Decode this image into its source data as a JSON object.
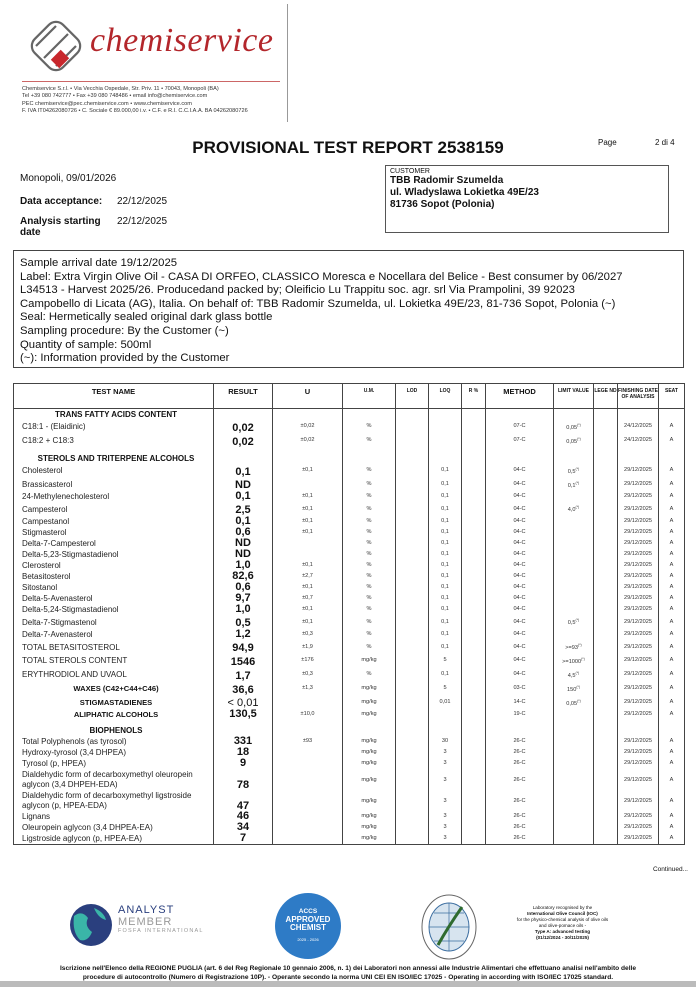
{
  "company": {
    "logo_text": "chemiservice",
    "address_lines": [
      "Chemiservice S.r.l. • Via Vecchia Ospedale, Str. Priv. 11 • 70043, Monopoli (BA)",
      "Tel +39 080 742777 • Fax +39 080 748486 • email info@chemiservice.com",
      "PEC chemiservice@pec.chemiservice.com • www.chemiservice.com",
      "F. IVA IT04262080726 • C. Sociale € 89.000,00 i.v. • C.F. e R.I. C.C.I.A.A. BA 04262080726"
    ]
  },
  "report": {
    "title": "PROVISIONAL TEST REPORT 2538159",
    "page_label": "Page",
    "page_value": "2 di 4",
    "place_date": "Monopoli, 09/01/2026",
    "acceptance_label": "Data acceptance:",
    "acceptance_value": "22/12/2025",
    "analysis_label": "Analysis starting date",
    "analysis_value": "22/12/2025"
  },
  "customer": {
    "label": "CUSTOMER",
    "lines": [
      "TBB Radomir Szumelda",
      "ul. Wladyslawa Lokietka 49E/23",
      "81736  Sopot (Polonia)"
    ]
  },
  "sample_lines": [
    "Sample arrival date 19/12/2025",
    "Label: Extra Virgin Olive Oil - CASA DI ORFEO, CLASSICO Moresca e Nocellara del Belice - Best consumer by 06/2027",
    "L34513 - Harvest 2025/26. Producedand packed by; Oleificio Lu Trappitu soc. agr. srl Via Prampolini, 39 92023",
    "Campobello di Licata (AG), Italia. On behalf of: TBB Radomir Szumelda, ul. Lokietka 49E/23, 81-736 Sopot, Polonia  (~)",
    "Seal: Hermetically sealed original dark glass bottle",
    "Sampling procedure: By the Customer (~)",
    "Quantity of sample: 500ml",
    "(~): Information provided by the Customer"
  ],
  "table": {
    "headers": [
      "TEST NAME",
      "RESULT",
      "U",
      "U.M.",
      "LOD",
      "LOQ",
      "R %",
      "METHOD",
      "LIMIT VALUE",
      "LEGE ND",
      "FINISHING DATE OF ANALYSIS",
      "SEAT"
    ],
    "rows": [
      {
        "type": "section",
        "name": "TRANS FATTY ACIDS CONTENT"
      },
      {
        "name": "C18:1 - (Elaidinic)",
        "result": "0,02",
        "u": "±0,02",
        "um": "%",
        "lod": "",
        "loq": "",
        "r": "",
        "method": "07-C",
        "limit": "0,05",
        "limit_note": "(*)",
        "date": "24/12/2025",
        "seat": "A"
      },
      {
        "name": "C18:2 + C18:3",
        "result": "0,02",
        "u": "±0,02",
        "um": "%",
        "lod": "",
        "loq": "",
        "r": "",
        "method": "07-C",
        "limit": "0,05",
        "limit_note": "(*)",
        "date": "24/12/2025",
        "seat": "A"
      },
      {
        "type": "space"
      },
      {
        "type": "section",
        "name": "STEROLS AND TRITERPENE ALCOHOLS"
      },
      {
        "name": "Cholesterol",
        "result": "0,1",
        "u": "±0,1",
        "um": "%",
        "loq": "0,1",
        "method": "04-C",
        "limit": "0,5",
        "limit_note": "(*)",
        "date": "29/12/2025",
        "seat": "A"
      },
      {
        "name": "Brassicasterol",
        "result": "ND",
        "u": "",
        "um": "%",
        "loq": "0,1",
        "method": "04-C",
        "limit": "0,1",
        "limit_note": "(*)",
        "date": "29/12/2025",
        "seat": "A"
      },
      {
        "name": "24-Methylenecholesterol",
        "result": "0,1",
        "u": "±0,1",
        "um": "%",
        "loq": "0,1",
        "method": "04-C",
        "limit": "",
        "date": "29/12/2025",
        "seat": "A"
      },
      {
        "name": "Campesterol",
        "result": "2,5",
        "u": "±0,1",
        "um": "%",
        "loq": "0,1",
        "method": "04-C",
        "limit": "4,0",
        "limit_note": "(*)",
        "date": "29/12/2025",
        "seat": "A"
      },
      {
        "name": "Campestanol",
        "result": "0,1",
        "u": "±0,1",
        "um": "%",
        "loq": "0,1",
        "method": "04-C",
        "limit": "",
        "date": "29/12/2025",
        "seat": "A"
      },
      {
        "name": "Stigmasterol",
        "result": "0,6",
        "u": "±0,1",
        "um": "%",
        "loq": "0,1",
        "method": "04-C",
        "limit": "",
        "date": "29/12/2025",
        "seat": "A"
      },
      {
        "name": "Delta-7-Campesterol",
        "result": "ND",
        "u": "",
        "um": "%",
        "loq": "0,1",
        "method": "04-C",
        "limit": "",
        "date": "29/12/2025",
        "seat": "A"
      },
      {
        "name": "Delta-5,23-Stigmastadienol",
        "result": "ND",
        "u": "",
        "um": "%",
        "loq": "0,1",
        "method": "04-C",
        "limit": "",
        "date": "29/12/2025",
        "seat": "A"
      },
      {
        "name": "Clerosterol",
        "result": "1,0",
        "u": "±0,1",
        "um": "%",
        "loq": "0,1",
        "method": "04-C",
        "limit": "",
        "date": "29/12/2025",
        "seat": "A"
      },
      {
        "name": "Betasitosterol",
        "result": "82,6",
        "u": "±2,7",
        "um": "%",
        "loq": "0,1",
        "method": "04-C",
        "limit": "",
        "date": "29/12/2025",
        "seat": "A"
      },
      {
        "name": "Sitostanol",
        "result": "0,6",
        "u": "±0,1",
        "um": "%",
        "loq": "0,1",
        "method": "04-C",
        "limit": "",
        "date": "29/12/2025",
        "seat": "A"
      },
      {
        "name": "Delta-5-Avenasterol",
        "result": "9,7",
        "u": "±0,7",
        "um": "%",
        "loq": "0,1",
        "method": "04-C",
        "limit": "",
        "date": "29/12/2025",
        "seat": "A"
      },
      {
        "name": "Delta-5,24-Stigmastadienol",
        "result": "1,0",
        "u": "±0,1",
        "um": "%",
        "loq": "0,1",
        "method": "04-C",
        "limit": "",
        "date": "29/12/2025",
        "seat": "A"
      },
      {
        "name": "Delta-7-Stigmastenol",
        "result": "0,5",
        "u": "±0,1",
        "um": "%",
        "loq": "0,1",
        "method": "04-C",
        "limit": "0,5",
        "limit_note": "(*)",
        "date": "29/12/2025",
        "seat": "A"
      },
      {
        "name": "Delta-7-Avenasterol",
        "result": "1,2",
        "u": "±0,3",
        "um": "%",
        "loq": "0,1",
        "method": "04-C",
        "limit": "",
        "date": "29/12/2025",
        "seat": "A"
      },
      {
        "name": "TOTAL BETASITOSTEROL",
        "result": "94,9",
        "u": "±1,9",
        "um": "%",
        "loq": "0,1",
        "method": "04-C",
        "limit": ">=93",
        "limit_note": "(*)",
        "date": "29/12/2025",
        "seat": "A"
      },
      {
        "name": "TOTAL STEROLS CONTENT",
        "result": "1546",
        "u": "±176",
        "um": "mg/kg",
        "loq": "5",
        "method": "04-C",
        "limit": ">=1000",
        "limit_note": "(*)",
        "date": "29/12/2025",
        "seat": "A"
      },
      {
        "name": "ERYTHRODIOL AND UVAOL",
        "result": "1,7",
        "u": "±0,3",
        "um": "%",
        "loq": "0,1",
        "method": "04-C",
        "limit": "4,5",
        "limit_note": "(*)",
        "date": "29/12/2025",
        "seat": "A"
      },
      {
        "type": "top",
        "name": "WAXES (C42+C44+C46)",
        "result": "36,6",
        "u": "±1,3",
        "um": "mg/kg",
        "loq": "5",
        "method": "03-C",
        "limit": "150",
        "limit_note": "(*)",
        "date": "29/12/2025",
        "seat": "A"
      },
      {
        "type": "top",
        "name": "STIGMASTADIENES",
        "result": "< 0,01",
        "u": "",
        "um": "mg/kg",
        "loq": "0,01",
        "method": "14-C",
        "limit": "0,05",
        "limit_note": "(*)",
        "date": "29/12/2025",
        "seat": "A"
      },
      {
        "type": "top",
        "name": "ALIPHATIC ALCOHOLS",
        "result": "130,5",
        "u": "±10,0",
        "um": "mg/kg",
        "loq": "",
        "method": "19-C",
        "limit": "",
        "date": "29/12/2025",
        "seat": "A"
      },
      {
        "type": "space"
      },
      {
        "type": "section",
        "name": "BIOPHENOLS"
      },
      {
        "name": "Total Polyphenols (as tyrosol)",
        "result": "331",
        "u": "±93",
        "um": "mg/kg",
        "loq": "30",
        "method": "26-C",
        "limit": "",
        "date": "29/12/2025",
        "seat": "A"
      },
      {
        "name": "Hydroxy-tyrosol (3,4 DHPEA)",
        "result": "18",
        "u": "",
        "um": "mg/kg",
        "loq": "3",
        "method": "26-C",
        "limit": "",
        "date": "29/12/2025",
        "seat": "A"
      },
      {
        "name": "Tyrosol (p, HPEA)",
        "result": "9",
        "u": "",
        "um": "mg/kg",
        "loq": "3",
        "method": "26-C",
        "limit": "",
        "date": "29/12/2025",
        "seat": "A"
      },
      {
        "type": "tall",
        "name": "Dialdehydic form of decarboxymethyl oleuropein aglycon (3,4 DHPEH-EDA)",
        "result": "78",
        "u": "",
        "um": "mg/kg",
        "loq": "3",
        "method": "26-C",
        "limit": "",
        "date": "29/12/2025",
        "seat": "A"
      },
      {
        "type": "tall",
        "name": "Dialdehydic form of decarboxymethyl ligstroside aglycon (p, HPEA-EDA)",
        "result": "47",
        "u": "",
        "um": "mg/kg",
        "loq": "3",
        "method": "26-C",
        "limit": "",
        "date": "29/12/2025",
        "seat": "A"
      },
      {
        "name": "Lignans",
        "result": "46",
        "u": "",
        "um": "mg/kg",
        "loq": "3",
        "method": "26-C",
        "limit": "",
        "date": "29/12/2025",
        "seat": "A"
      },
      {
        "name": "Oleuropein aglycon (3,4 DHPEA-EA)",
        "result": "34",
        "u": "",
        "um": "mg/kg",
        "loq": "3",
        "method": "26-C",
        "limit": "",
        "date": "29/12/2025",
        "seat": "A"
      },
      {
        "name": "Ligstroside aglycon (p, HPEA-EA)",
        "result": "7",
        "u": "",
        "um": "mg/kg",
        "loq": "3",
        "method": "26-C",
        "limit": "",
        "date": "29/12/2025",
        "seat": "A"
      }
    ]
  },
  "continued": "Continued...",
  "logos": {
    "fosa": [
      "ANALYST",
      "MEMBER",
      "FOSFA INTERNATIONAL"
    ],
    "accs": [
      "ACCS",
      "APPROVED",
      "CHEMIST",
      "2025 - 2026"
    ],
    "ioc_lines": [
      "Laboratory recognised by the",
      "International Olive Council (IOC)",
      "for the physico-chemical analysis of olive oils",
      "and olive-pomace oils -",
      "Type A: advanced testing",
      "(01/12/2024 - 30/11/2025)"
    ]
  },
  "footer": [
    "Iscrizione nell'Elenco della REGIONE PUGLIA (art. 6 del Reg Regionale 10 gennaio 2006, n. 1) dei Laboratori non annessi alle Industrie Alimentari che effettuano analisi nell'ambito delle",
    "procedure di autocontrollo (Numero di Registrazione 10P). - Operante secondo la norma UNI CEI EN ISO/IEC 17025 - Operating in according with ISO/IEC 17025 standard."
  ],
  "colors": {
    "brand": "#b3262b",
    "accs_blue": "#2e7bc6",
    "fosa_navy": "#2a3f7e"
  }
}
